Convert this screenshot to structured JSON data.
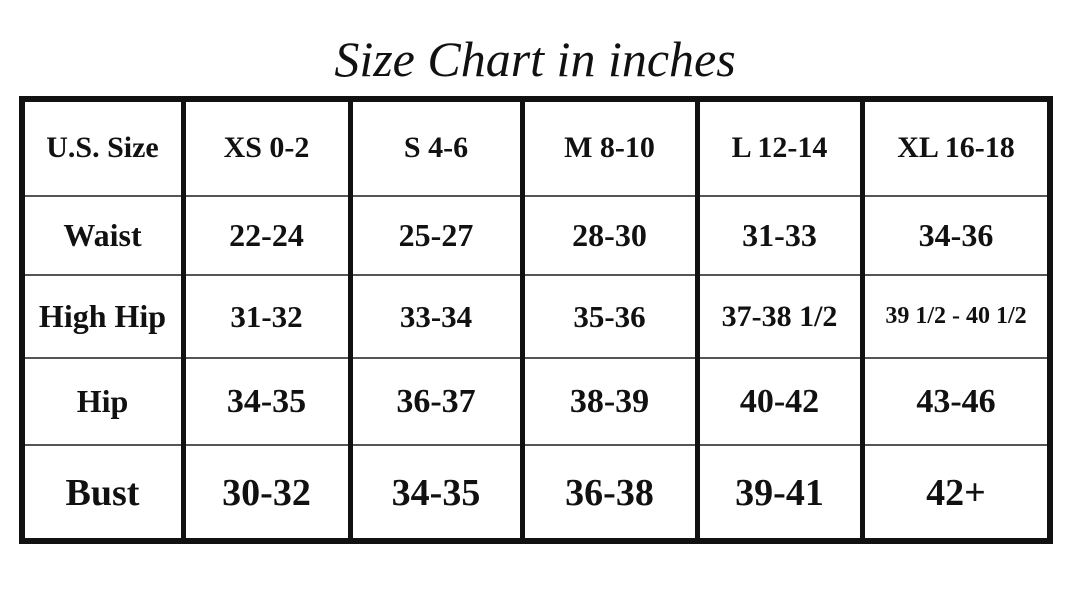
{
  "title": "Size Chart in inches",
  "table": {
    "header": [
      "U.S. Size",
      "XS 0-2",
      "S 4-6",
      "M 8-10",
      "L 12-14",
      "XL 16-18"
    ],
    "rows": [
      [
        "Waist",
        "22-24",
        "25-27",
        "28-30",
        "31-33",
        "34-36"
      ],
      [
        "High Hip",
        "31-32",
        "33-34",
        "35-36",
        "37-38 1/2",
        "39 1/2 - 40 1/2"
      ],
      [
        "Hip",
        "34-35",
        "36-37",
        "38-39",
        "40-42",
        "43-46"
      ],
      [
        "Bust",
        "30-32",
        "34-35",
        "36-38",
        "39-41",
        "42+"
      ]
    ]
  }
}
